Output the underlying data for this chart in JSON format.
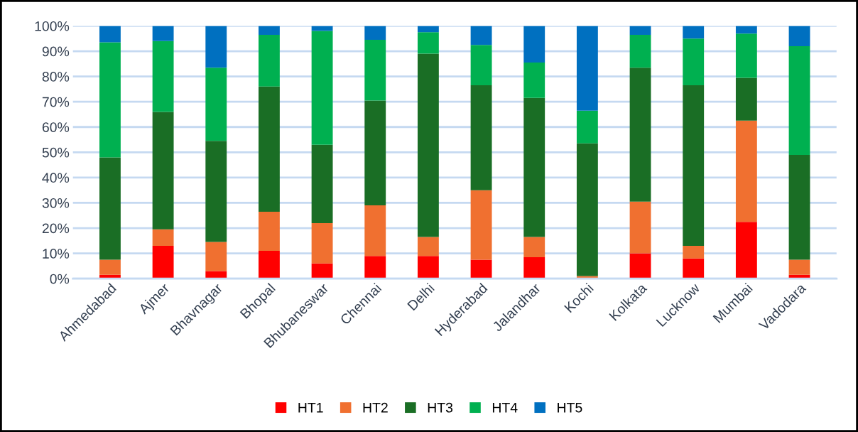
{
  "chart_data": {
    "type": "bar",
    "stacked": true,
    "categories": [
      "Ahmedabad",
      "Ajmer",
      "Bhavnagar",
      "Bhopal",
      "Bhubaneswar",
      "Chennai",
      "Delhi",
      "Hyderabad",
      "Jalandhar",
      "Kochi",
      "Kolkata",
      "Lucknow",
      "Mumbai",
      "Vadodara"
    ],
    "series": [
      {
        "name": "HT1",
        "color": "#ff0000",
        "values": [
          1.5,
          13,
          3,
          11,
          6,
          9,
          9,
          7.5,
          8.5,
          0,
          10,
          8,
          22.5,
          1.5
        ]
      },
      {
        "name": "HT2",
        "color": "#f07030",
        "values": [
          6,
          6.5,
          11.5,
          15.5,
          16,
          20,
          7.5,
          27.5,
          8,
          1,
          20.5,
          5,
          40,
          6
        ]
      },
      {
        "name": "HT3",
        "color": "#1a6e25",
        "values": [
          40.5,
          46.5,
          40,
          49.5,
          31,
          41.5,
          72.5,
          41.5,
          55,
          52.5,
          53,
          63.5,
          17,
          41.5
        ]
      },
      {
        "name": "HT4",
        "color": "#00b050",
        "values": [
          45.5,
          28,
          29,
          20.5,
          45,
          24,
          8.5,
          16,
          14,
          13,
          13,
          18.5,
          17.5,
          43
        ]
      },
      {
        "name": "HT5",
        "color": "#0070c0",
        "values": [
          6.5,
          6,
          16.5,
          3.5,
          2,
          5.5,
          2.5,
          7.5,
          14.5,
          33.5,
          3.5,
          5,
          3,
          8
        ]
      }
    ],
    "ylim": [
      0,
      100
    ],
    "yticks": [
      {
        "value": 0,
        "label": "0%"
      },
      {
        "value": 10,
        "label": "10%"
      },
      {
        "value": 20,
        "label": "20%"
      },
      {
        "value": 30,
        "label": "30%"
      },
      {
        "value": 40,
        "label": "40%"
      },
      {
        "value": 50,
        "label": "50%"
      },
      {
        "value": 60,
        "label": "60%"
      },
      {
        "value": 70,
        "label": "70%"
      },
      {
        "value": 80,
        "label": "80%"
      },
      {
        "value": 90,
        "label": "90%"
      },
      {
        "value": 100,
        "label": "100%"
      }
    ],
    "grid": "y",
    "legend": "bottom"
  }
}
